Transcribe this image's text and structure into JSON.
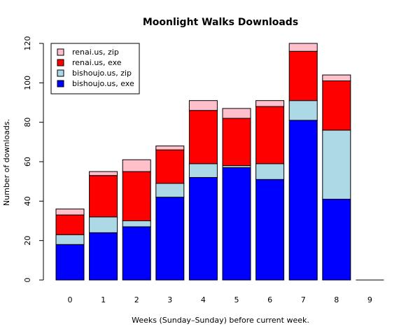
{
  "chart_data": {
    "type": "bar",
    "stacked": true,
    "title": "Moonlight Walks Downloads",
    "xlabel": "Weeks (Sunday–Sunday) before current week.",
    "ylabel": "Number of downloads.",
    "categories": [
      "0",
      "1",
      "2",
      "3",
      "4",
      "5",
      "6",
      "7",
      "8",
      "9"
    ],
    "ylim": [
      0,
      120
    ],
    "yticks": [
      "0",
      "20",
      "40",
      "60",
      "80",
      "100",
      "120"
    ],
    "grid": false,
    "legend_position": "top-left",
    "series": [
      {
        "name": "bishoujo.us, exe",
        "color": "#0000ff",
        "values": [
          18,
          24,
          27,
          42,
          52,
          57,
          51,
          81,
          41,
          0
        ]
      },
      {
        "name": "bishoujo.us, zip",
        "color": "#add8e6",
        "values": [
          5,
          8,
          3,
          7,
          7,
          1,
          8,
          10,
          35,
          0
        ]
      },
      {
        "name": "renai.us, exe",
        "color": "#ff0000",
        "values": [
          10,
          21,
          25,
          17,
          27,
          24,
          29,
          25,
          25,
          0
        ]
      },
      {
        "name": "renai.us, zip",
        "color": "#ffc0cb",
        "values": [
          3,
          2,
          6,
          2,
          5,
          5,
          3,
          4,
          3,
          0
        ]
      }
    ],
    "legend_order": [
      "renai.us, zip",
      "renai.us, exe",
      "bishoujo.us, zip",
      "bishoujo.us, exe"
    ]
  }
}
